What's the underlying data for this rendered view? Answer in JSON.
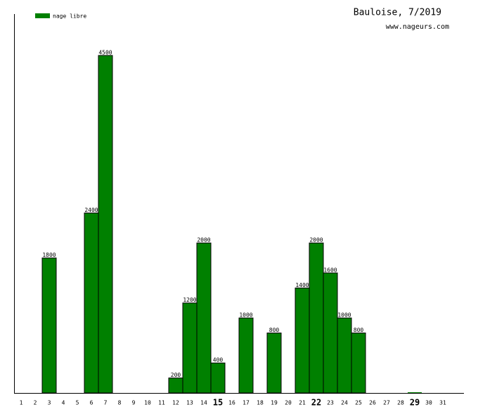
{
  "chart_data": {
    "type": "bar",
    "title": "Bauloise, 7/2019",
    "subtitle": "www.nageurs.com",
    "categories": [
      "1",
      "2",
      "3",
      "4",
      "5",
      "6",
      "7",
      "8",
      "9",
      "10",
      "11",
      "12",
      "13",
      "14",
      "15",
      "16",
      "17",
      "18",
      "19",
      "20",
      "21",
      "22",
      "23",
      "24",
      "25",
      "26",
      "27",
      "28",
      "29",
      "30",
      "31"
    ],
    "highlighted_categories": [
      "15",
      "22",
      "29"
    ],
    "series": [
      {
        "name": "nage libre",
        "color": "#008000",
        "values": [
          null,
          null,
          1800,
          null,
          null,
          2400,
          4500,
          null,
          null,
          null,
          null,
          200,
          1200,
          2000,
          400,
          null,
          1000,
          null,
          800,
          null,
          1400,
          2000,
          1600,
          1000,
          800,
          null,
          null,
          null,
          0,
          null,
          null
        ]
      }
    ],
    "ylim": [
      0,
      4500
    ]
  }
}
